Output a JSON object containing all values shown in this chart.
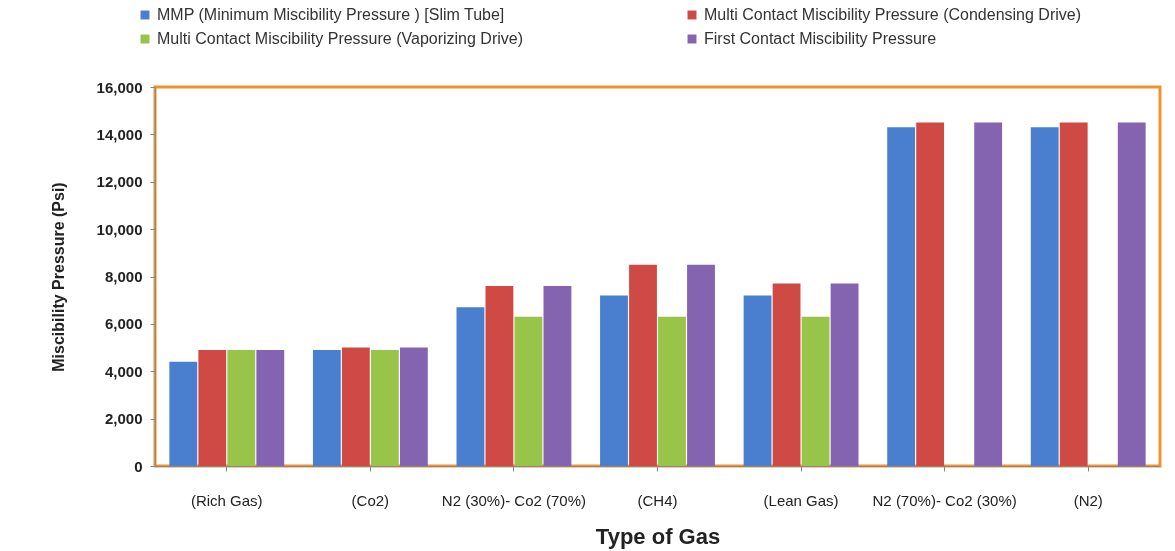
{
  "chart_data": {
    "type": "bar",
    "xlabel": "Type of Gas",
    "ylabel": "Miscibility Pressure (Psi)",
    "categories": [
      "(Rich Gas)",
      "(Co2)",
      "N2 (30%)- Co2 (70%)",
      "(CH4)",
      "(Lean Gas)",
      "N2 (70%)- Co2 (30%)",
      "(N2)"
    ],
    "series": [
      {
        "name": "MMP (Minimum Miscibility Pressure ) [Slim Tube]",
        "color": "#4a7fcf",
        "values": [
          4400,
          4900,
          6700,
          7200,
          7200,
          14300,
          14300
        ]
      },
      {
        "name": "Multi Contact Miscibility Pressure (Condensing Drive)",
        "color": "#d04a45",
        "values": [
          4900,
          5000,
          7600,
          8500,
          7700,
          14500,
          14500
        ]
      },
      {
        "name": "Multi Contact Miscibility Pressure (Vaporizing Drive)",
        "color": "#97c449",
        "values": [
          4900,
          4900,
          6300,
          6300,
          6300,
          null,
          null
        ]
      },
      {
        "name": "First Contact Miscibility Pressure",
        "color": "#8463b0",
        "values": [
          4900,
          5000,
          7600,
          8500,
          7700,
          14500,
          14500
        ]
      }
    ],
    "ylim": [
      0,
      16000
    ],
    "yticks": [
      0,
      {
        "value": 2000,
        "label": "2,000"
      },
      {
        "value": 4000,
        "label": "4,000"
      },
      {
        "value": 6000,
        "label": "6,000"
      },
      {
        "value": 8000,
        "label": "8,000"
      },
      {
        "value": 10000,
        "label": "10,000"
      },
      {
        "value": 12000,
        "label": "12,000"
      },
      {
        "value": 14000,
        "label": "14,000"
      },
      {
        "value": 16000,
        "label": "16,000"
      }
    ],
    "legend": "top"
  }
}
